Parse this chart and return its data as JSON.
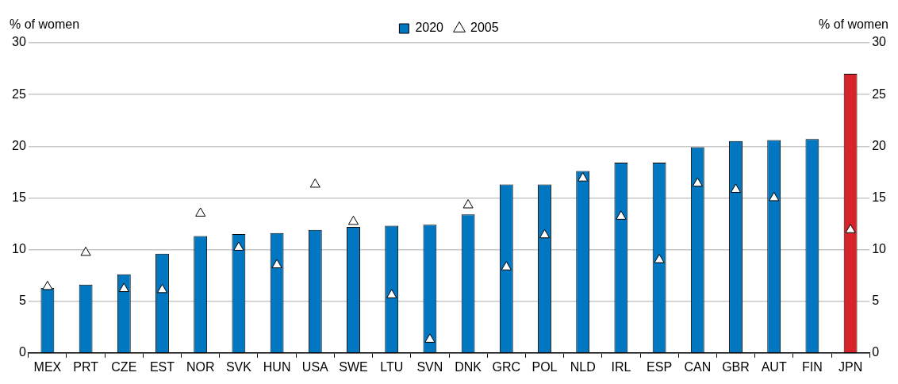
{
  "chart_data": {
    "type": "bar",
    "ylabel": "% of women",
    "y2label": "% of women",
    "categories": [
      "MEX",
      "PRT",
      "CZE",
      "EST",
      "NOR",
      "SVK",
      "HUN",
      "USA",
      "SWE",
      "LTU",
      "SVN",
      "DNK",
      "GRC",
      "POL",
      "NLD",
      "IRL",
      "ESP",
      "CAN",
      "GBR",
      "AUT",
      "FIN",
      "JPN"
    ],
    "series": [
      {
        "name": "2020",
        "color": "#0077c0",
        "colors": [
          "#0077c0",
          "#0077c0",
          "#0077c0",
          "#0077c0",
          "#0077c0",
          "#0077c0",
          "#0077c0",
          "#0077c0",
          "#0077c0",
          "#0077c0",
          "#0077c0",
          "#0077c0",
          "#0077c0",
          "#0077c0",
          "#0077c0",
          "#0077c0",
          "#0077c0",
          "#0077c0",
          "#0077c0",
          "#0077c0",
          "#0077c0",
          "#d9232a"
        ],
        "values": [
          6.3,
          6.6,
          7.6,
          9.6,
          11.3,
          11.5,
          11.6,
          11.9,
          12.2,
          12.3,
          12.4,
          13.4,
          16.3,
          16.3,
          17.6,
          18.4,
          18.4,
          19.9,
          20.5,
          20.6,
          20.7,
          27.0
        ]
      },
      {
        "name": "2005",
        "type": "scatter",
        "color": "#ffffff",
        "values": [
          6.4,
          9.7,
          6.2,
          6.1,
          13.5,
          10.2,
          8.5,
          16.3,
          12.7,
          5.6,
          1.3,
          14.3,
          8.3,
          11.4,
          16.9,
          13.2,
          9.0,
          16.4,
          15.8,
          15.0,
          null,
          11.9
        ]
      }
    ],
    "marker": "triangle",
    "ylim": [
      0,
      30
    ],
    "yticks": [
      0,
      5,
      10,
      15,
      20,
      25,
      30
    ],
    "y2lim": [
      0,
      30
    ],
    "y2ticks": [
      0,
      5,
      10,
      15,
      20,
      25,
      30
    ],
    "grid": "y",
    "legend": "top"
  }
}
